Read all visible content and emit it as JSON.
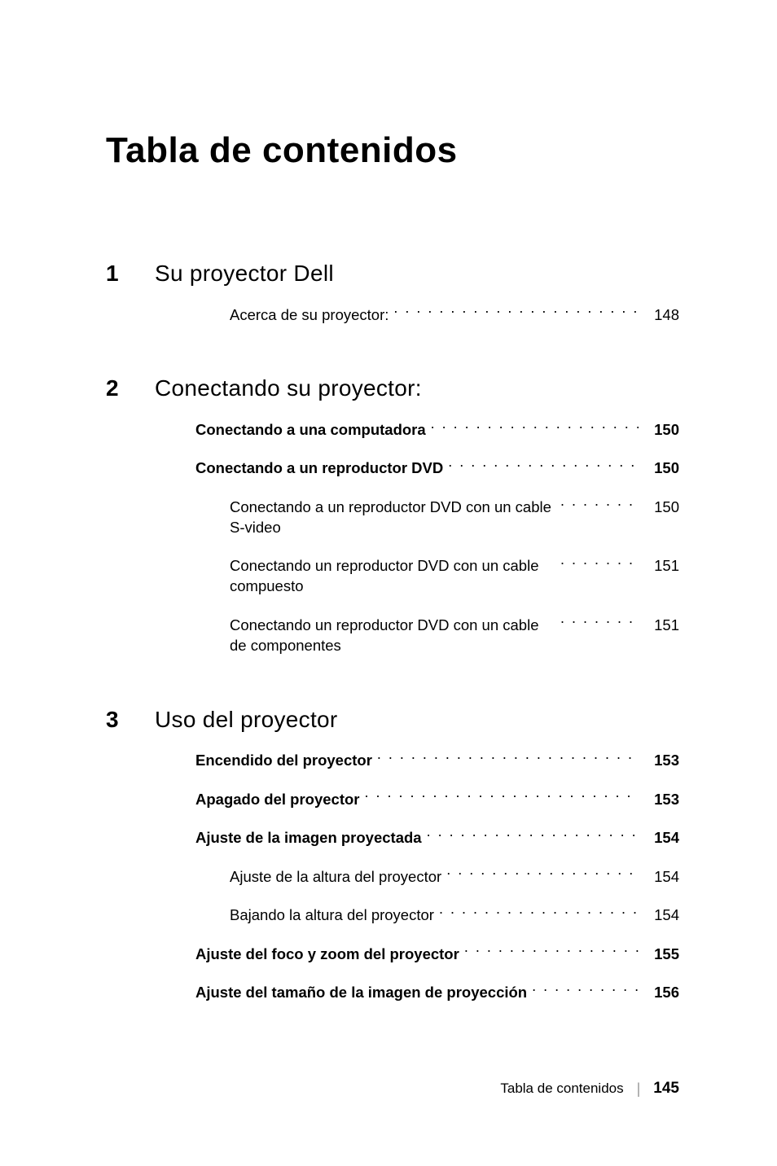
{
  "title": "Tabla de contenidos",
  "sections": [
    {
      "num": "1",
      "title": "Su proyector Dell",
      "entries": [
        {
          "label": "Acerca de su proyector:",
          "page": "148",
          "bold": false,
          "indent": "sub"
        }
      ]
    },
    {
      "num": "2",
      "title": "Conectando su proyector:",
      "entries": [
        {
          "label": "Conectando a una computadora",
          "page": "150",
          "bold": true,
          "indent": ""
        },
        {
          "label": "Conectando a un reproductor DVD",
          "page": "150",
          "bold": true,
          "indent": ""
        },
        {
          "label": "Conectando a un reproductor DVD con un cable S-video",
          "page": "150",
          "bold": false,
          "indent": "sub"
        },
        {
          "label": "Conectando un reproductor DVD con un cable compuesto",
          "page": "151",
          "bold": false,
          "indent": "sub"
        },
        {
          "label": "Conectando un reproductor DVD con un cable de componentes",
          "page": "151",
          "bold": false,
          "indent": "sub"
        }
      ]
    },
    {
      "num": "3",
      "title": "Uso del proyector",
      "entries": [
        {
          "label": "Encendido del proyector",
          "page": "153",
          "bold": true,
          "indent": ""
        },
        {
          "label": "Apagado del proyector",
          "page": "153",
          "bold": true,
          "indent": ""
        },
        {
          "label": "Ajuste de la imagen proyectada",
          "page": "154",
          "bold": true,
          "indent": ""
        },
        {
          "label": "Ajuste de la altura del proyector",
          "page": "154",
          "bold": false,
          "indent": "sub"
        },
        {
          "label": "Bajando la altura del proyector",
          "page": "154",
          "bold": false,
          "indent": "sub"
        },
        {
          "label": "Ajuste del foco y zoom del proyector",
          "page": "155",
          "bold": true,
          "indent": ""
        },
        {
          "label": "Ajuste del tamaño de la imagen de proyección",
          "page": "156",
          "bold": true,
          "indent": ""
        }
      ]
    }
  ],
  "footer": {
    "text": "Tabla de contenidos",
    "page": "145"
  },
  "colors": {
    "text": "#000000",
    "bg": "#ffffff"
  }
}
